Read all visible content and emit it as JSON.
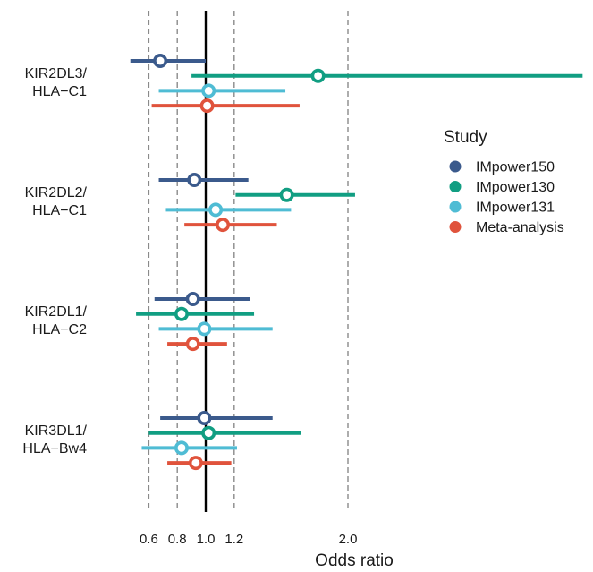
{
  "chart_data": {
    "type": "scatter",
    "subtype": "forest-plot",
    "xlabel": "Odds ratio",
    "x_ticks": [
      0.6,
      0.8,
      1.0,
      1.2,
      2.0
    ],
    "x_tick_labels": [
      "0.6",
      "0.8",
      "1.0",
      "1.2",
      "2.0"
    ],
    "xlim": [
      0.2,
      3.65
    ],
    "reference_line": 1.0,
    "dashed_gridlines": [
      0.6,
      0.8,
      1.2,
      2.0
    ],
    "legend": {
      "title": "Study",
      "position": "right"
    },
    "series": [
      {
        "name": "IMpower150",
        "color": "#3b5a8c"
      },
      {
        "name": "IMpower130",
        "color": "#119e82"
      },
      {
        "name": "IMpower131",
        "color": "#4fbcd4"
      },
      {
        "name": "Meta-analysis",
        "color": "#e0533c"
      }
    ],
    "groups": [
      {
        "label_lines": [
          "KIR2DL3/",
          "HLA−C1"
        ],
        "estimates": [
          {
            "series": "IMpower150",
            "or": 0.68,
            "lo": 0.47,
            "hi": 1.0
          },
          {
            "series": "IMpower130",
            "or": 1.79,
            "lo": 0.9,
            "hi": 3.65
          },
          {
            "series": "IMpower131",
            "or": 1.02,
            "lo": 0.67,
            "hi": 1.56
          },
          {
            "series": "Meta-analysis",
            "or": 1.01,
            "lo": 0.62,
            "hi": 1.66
          }
        ]
      },
      {
        "label_lines": [
          "KIR2DL2/",
          "HLA−C1"
        ],
        "estimates": [
          {
            "series": "IMpower150",
            "or": 0.92,
            "lo": 0.67,
            "hi": 1.3
          },
          {
            "series": "IMpower130",
            "or": 1.57,
            "lo": 1.21,
            "hi": 2.05
          },
          {
            "series": "IMpower131",
            "or": 1.07,
            "lo": 0.72,
            "hi": 1.6
          },
          {
            "series": "Meta-analysis",
            "or": 1.12,
            "lo": 0.85,
            "hi": 1.5
          }
        ]
      },
      {
        "label_lines": [
          "KIR2DL1/",
          "HLA−C2"
        ],
        "estimates": [
          {
            "series": "IMpower150",
            "or": 0.91,
            "lo": 0.64,
            "hi": 1.31
          },
          {
            "series": "IMpower130",
            "or": 0.83,
            "lo": 0.51,
            "hi": 1.34
          },
          {
            "series": "IMpower131",
            "or": 0.99,
            "lo": 0.67,
            "hi": 1.47
          },
          {
            "series": "Meta-analysis",
            "or": 0.91,
            "lo": 0.73,
            "hi": 1.15
          }
        ]
      },
      {
        "label_lines": [
          "KIR3DL1/",
          "HLA−Bw4"
        ],
        "estimates": [
          {
            "series": "IMpower150",
            "or": 0.99,
            "lo": 0.68,
            "hi": 1.47
          },
          {
            "series": "IMpower130",
            "or": 1.02,
            "lo": 0.6,
            "hi": 1.67
          },
          {
            "series": "IMpower131",
            "or": 0.83,
            "lo": 0.55,
            "hi": 1.22
          },
          {
            "series": "Meta-analysis",
            "or": 0.93,
            "lo": 0.73,
            "hi": 1.18
          }
        ]
      }
    ]
  }
}
